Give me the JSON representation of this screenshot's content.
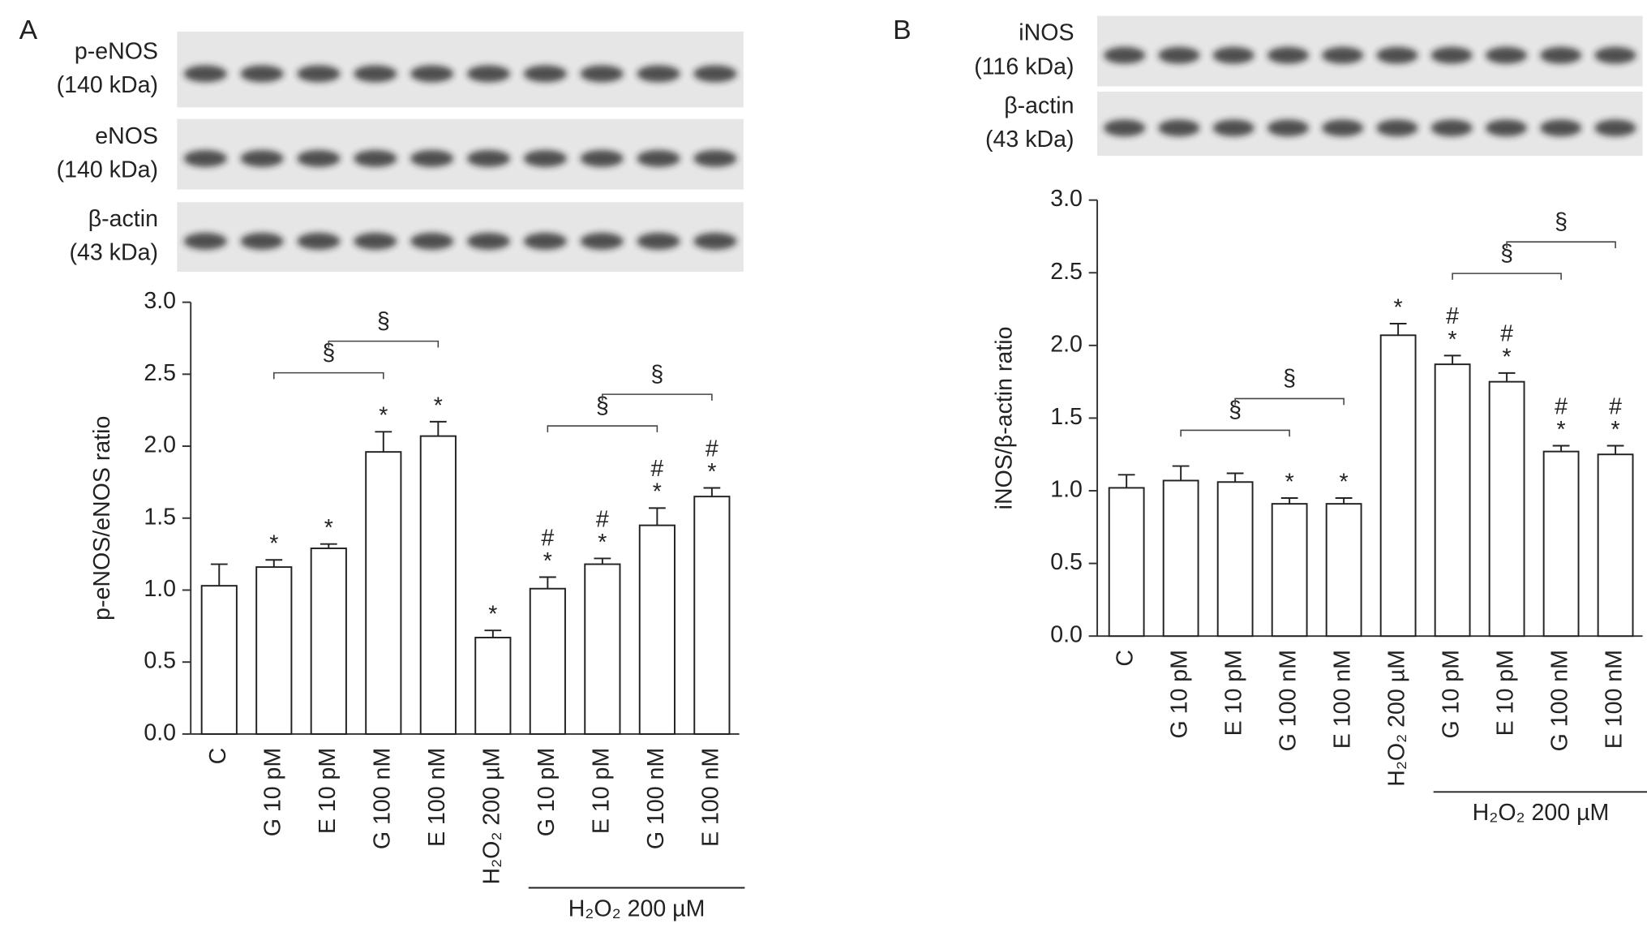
{
  "chart_data": [
    {
      "type": "bar",
      "panel_label": "A",
      "y_label": "p-eNOS/eNOS ratio",
      "blots": [
        {
          "name": "p-eNOS",
          "size": "(140 kDa)"
        },
        {
          "name": "eNOS",
          "size": "(140 kDa)"
        },
        {
          "name": "β-actin",
          "size": "(43 kDa)"
        }
      ],
      "categories": [
        "C",
        "G 10 pM",
        "E 10 pM",
        "G 100 nM",
        "E 100 nM",
        "H₂O₂ 200 µM",
        "G 10 pM",
        "E 10 pM",
        "G 100 nM",
        "E 100 nM"
      ],
      "values": [
        1.03,
        1.16,
        1.29,
        1.96,
        2.07,
        0.67,
        1.01,
        1.18,
        1.45,
        1.65
      ],
      "errors": [
        0.15,
        0.05,
        0.03,
        0.14,
        0.1,
        0.05,
        0.08,
        0.04,
        0.12,
        0.06
      ],
      "annotations": [
        [],
        [
          "*"
        ],
        [
          "*"
        ],
        [
          "*"
        ],
        [
          "*"
        ],
        [
          "*"
        ],
        [
          "#",
          "*"
        ],
        [
          "#",
          "*"
        ],
        [
          "#",
          "*"
        ],
        [
          "#",
          "*"
        ]
      ],
      "brackets": [
        {
          "from": 1,
          "to": 3,
          "label": "§"
        },
        {
          "from": 2,
          "to": 4,
          "label": "§"
        },
        {
          "from": 6,
          "to": 8,
          "label": "§"
        },
        {
          "from": 7,
          "to": 9,
          "label": "§"
        }
      ],
      "group": {
        "from": 6,
        "to": 9,
        "label": "H₂O₂ 200 µM"
      },
      "color": "#ffffff",
      "ylim": [
        0,
        3
      ],
      "yticks": [
        {
          "value": 0,
          "label": "0.0"
        },
        0.5,
        {
          "value": 1,
          "label": "1.0"
        },
        1.5,
        {
          "value": 2,
          "label": "2.0"
        },
        2.5,
        {
          "value": 3,
          "label": "3.0"
        }
      ]
    },
    {
      "type": "bar",
      "panel_label": "B",
      "y_label": "iNOS/β-actin ratio",
      "blots": [
        {
          "name": "iNOS",
          "size": "(116 kDa)"
        },
        {
          "name": "β-actin",
          "size": "(43 kDa)"
        }
      ],
      "categories": [
        "C",
        "G 10 pM",
        "E 10 pM",
        "G 100 nM",
        "E 100 nM",
        "H₂O₂ 200 µM",
        "G 10 pM",
        "E 10 pM",
        "G 100 nM",
        "E 100 nM"
      ],
      "values": [
        1.02,
        1.07,
        1.06,
        0.91,
        0.91,
        2.07,
        1.87,
        1.75,
        1.27,
        1.25
      ],
      "errors": [
        0.09,
        0.1,
        0.06,
        0.04,
        0.04,
        0.08,
        0.06,
        0.06,
        0.04,
        0.06
      ],
      "annotations": [
        [],
        [],
        [],
        [
          "*"
        ],
        [
          "*"
        ],
        [
          "*"
        ],
        [
          "#",
          "*"
        ],
        [
          "#",
          "*"
        ],
        [
          "#",
          "*"
        ],
        [
          "#",
          "*"
        ]
      ],
      "brackets": [
        {
          "from": 1,
          "to": 3,
          "label": "§"
        },
        {
          "from": 2,
          "to": 4,
          "label": "§"
        },
        {
          "from": 6,
          "to": 8,
          "label": "§"
        },
        {
          "from": 7,
          "to": 9,
          "label": "§"
        }
      ],
      "group": {
        "from": 6,
        "to": 9,
        "label": "H₂O₂ 200 µM"
      },
      "color": "#ffffff",
      "ylim": [
        0,
        3
      ],
      "yticks": [
        {
          "value": 0,
          "label": "0.0"
        },
        0.5,
        {
          "value": 1,
          "label": "1.0"
        },
        1.5,
        {
          "value": 2,
          "label": "2.0"
        },
        2.5,
        {
          "value": 3,
          "label": "3.0"
        }
      ]
    }
  ]
}
